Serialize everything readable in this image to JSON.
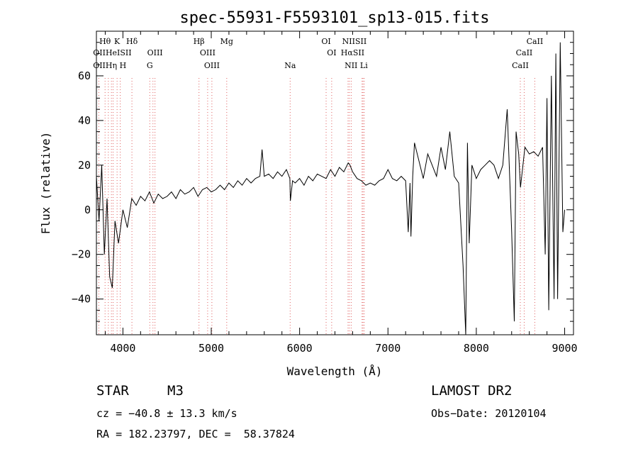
{
  "chart_data": {
    "type": "line",
    "title": "spec-55931-F5593101_sp13-015.fits",
    "xlabel": "Wavelength (Å)",
    "ylabel": "Flux (relative)",
    "xlim": [
      3700,
      9100
    ],
    "ylim": [
      -56,
      80
    ],
    "xticks": [
      4000,
      5000,
      6000,
      7000,
      8000,
      9000
    ],
    "yticks": [
      -40,
      -20,
      0,
      20,
      40,
      60
    ],
    "grid": false,
    "series": [
      {
        "x": [
          3700,
          3730,
          3760,
          3790,
          3820,
          3850,
          3880,
          3910,
          3950,
          4000,
          4050,
          4100,
          4150,
          4200,
          4250,
          4300,
          4350,
          4400,
          4450,
          4500,
          4550,
          4600,
          4650,
          4700,
          4750,
          4800,
          4850,
          4900,
          4950,
          5000,
          5050,
          5100,
          5150,
          5200,
          5250,
          5300,
          5350,
          5400,
          5450,
          5500,
          5550,
          5575,
          5600,
          5650,
          5700,
          5750,
          5800,
          5850,
          5890,
          5895,
          5920,
          5950,
          6000,
          6050,
          6100,
          6150,
          6200,
          6250,
          6300,
          6350,
          6400,
          6450,
          6500,
          6550,
          6570,
          6600,
          6650,
          6700,
          6750,
          6800,
          6850,
          6900,
          6950,
          7000,
          7050,
          7100,
          7150,
          7200,
          7230,
          7250,
          7260,
          7280,
          7300,
          7350,
          7400,
          7450,
          7500,
          7550,
          7600,
          7650,
          7700,
          7750,
          7800,
          7850,
          7880,
          7900,
          7920,
          7950,
          8000,
          8050,
          8100,
          8150,
          8200,
          8250,
          8300,
          8350,
          8400,
          8430,
          8450,
          8480,
          8500,
          8550,
          8600,
          8650,
          8700,
          8750,
          8780,
          8800,
          8820,
          8850,
          8880,
          8900,
          8920,
          8950,
          8980,
          9000
        ],
        "y": [
          15,
          -5,
          20,
          -20,
          5,
          -30,
          -35,
          -5,
          -15,
          0,
          -8,
          5,
          2,
          6,
          4,
          8,
          3,
          7,
          5,
          6,
          8,
          5,
          9,
          7,
          8,
          10,
          6,
          9,
          10,
          8,
          9,
          11,
          9,
          12,
          10,
          13,
          11,
          14,
          12,
          14,
          15,
          27,
          15,
          16,
          14,
          17,
          15,
          18,
          14,
          4,
          13,
          12,
          14,
          11,
          15,
          13,
          16,
          15,
          14,
          18,
          15,
          19,
          17,
          21,
          20,
          17,
          14,
          13,
          11,
          12,
          11,
          13,
          14,
          18,
          14,
          13,
          15,
          13,
          -10,
          12,
          -12,
          15,
          30,
          22,
          14,
          25,
          20,
          15,
          28,
          18,
          35,
          15,
          12,
          -25,
          -57,
          30,
          -15,
          20,
          14,
          18,
          20,
          22,
          20,
          14,
          20,
          45,
          -10,
          -50,
          35,
          25,
          10,
          28,
          25,
          26,
          24,
          28,
          -20,
          50,
          -45,
          60,
          -40,
          70,
          -40,
          75,
          -10,
          0
        ]
      }
    ],
    "spectral_lines": [
      {
        "label": "Hθ",
        "x": 3798,
        "row": 1
      },
      {
        "label": "K",
        "x": 3934,
        "row": 1
      },
      {
        "label": "Hδ",
        "x": 4102,
        "row": 1
      },
      {
        "label": "Hβ",
        "x": 4861,
        "row": 1
      },
      {
        "label": "Mg",
        "x": 5175,
        "row": 1
      },
      {
        "label": "OI",
        "x": 6300,
        "row": 1
      },
      {
        "label": "NIISII",
        "x": 6620,
        "row": 1
      },
      {
        "label": "CaII",
        "x": 8662,
        "row": 1
      },
      {
        "label": "OIIHeISII",
        "x": 3880,
        "row": 2
      },
      {
        "label": "OIII",
        "x": 4363,
        "row": 2
      },
      {
        "label": "OIII",
        "x": 4959,
        "row": 2
      },
      {
        "label": "OI",
        "x": 6363,
        "row": 2
      },
      {
        "label": "HαSII",
        "x": 6600,
        "row": 2
      },
      {
        "label": "CaII",
        "x": 8542,
        "row": 2
      },
      {
        "label": "OIIHη H",
        "x": 3850,
        "row": 3
      },
      {
        "label": "G",
        "x": 4304,
        "row": 3
      },
      {
        "label": "OIII",
        "x": 5007,
        "row": 3
      },
      {
        "label": "Na",
        "x": 5893,
        "row": 3
      },
      {
        "label": "NII Li",
        "x": 6640,
        "row": 3
      },
      {
        "label": "CaII",
        "x": 8498,
        "row": 3
      }
    ],
    "line_positions": [
      3727,
      3798,
      3835,
      3870,
      3889,
      3934,
      3970,
      4102,
      4304,
      4340,
      4363,
      4861,
      4959,
      5007,
      5175,
      5893,
      6300,
      6363,
      6548,
      6563,
      6584,
      6707,
      6717,
      6731,
      8498,
      8542,
      8662
    ]
  },
  "info": {
    "object_type": "STAR",
    "subclass": "M3",
    "survey": "LAMOST DR2",
    "cz": "cz = −40.8 ± 13.3 km/s",
    "obs_date": "Obs−Date: 20120104",
    "radec": "RA = 182.23797, DEC =  58.37824"
  }
}
